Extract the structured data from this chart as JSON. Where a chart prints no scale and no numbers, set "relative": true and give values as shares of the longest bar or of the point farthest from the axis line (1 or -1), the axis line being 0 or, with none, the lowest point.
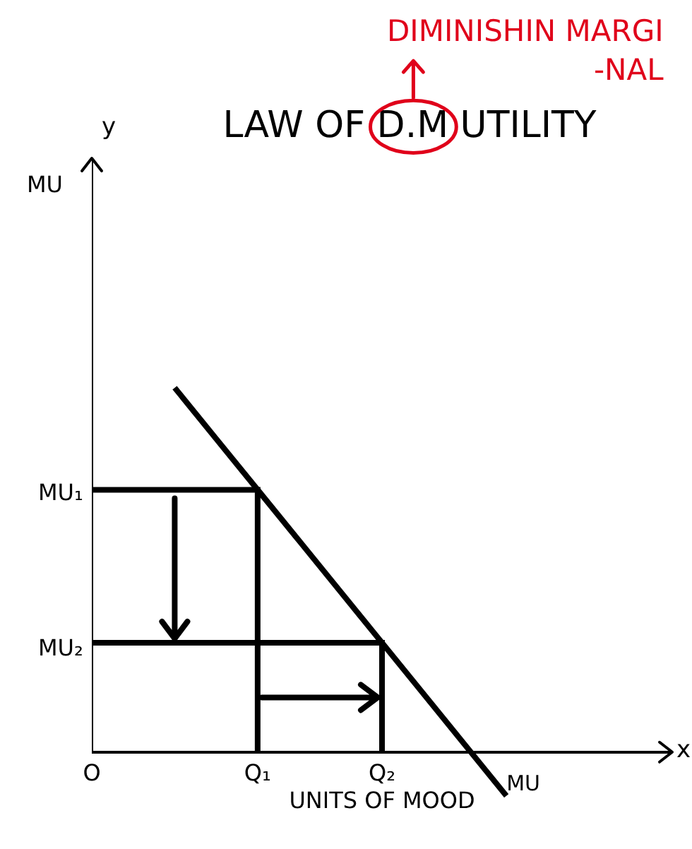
{
  "chart_data": {
    "type": "line",
    "relative": true,
    "title": "LAW OF D.M UTILITY",
    "xlabel": "UNITS OF MOOD",
    "annotations": [
      "DIMINISHIN MARGI\n-NAL",
      "y",
      "MU",
      "x",
      "MU₁",
      "MU₂"
    ],
    "categories": [
      "O",
      null,
      null,
      null,
      "Q₁",
      null,
      null,
      "Q₂",
      null,
      null,
      null,
      null,
      null,
      null,
      null
    ],
    "series": [
      {
        "name": "MU",
        "color": "#000000",
        "values": [
          null,
          null,
          1,
          0.86,
          0.72,
          0.58,
          0.44,
          0.3,
          0.16,
          0.02,
          -0.12,
          null,
          null,
          null,
          null
        ]
      },
      {
        "type": "step",
        "color": "#000000",
        "values": [
          0.72,
          0.72,
          0.72,
          0.72,
          0,
          null,
          null,
          null,
          null,
          null,
          null,
          null,
          null,
          null,
          null
        ]
      },
      {
        "type": "step",
        "color": "#000000",
        "values": [
          0.3,
          0.3,
          0.3,
          0.3,
          0.3,
          0.3,
          0.3,
          0,
          null,
          null,
          null,
          null,
          null,
          null,
          null
        ]
      }
    ]
  }
}
